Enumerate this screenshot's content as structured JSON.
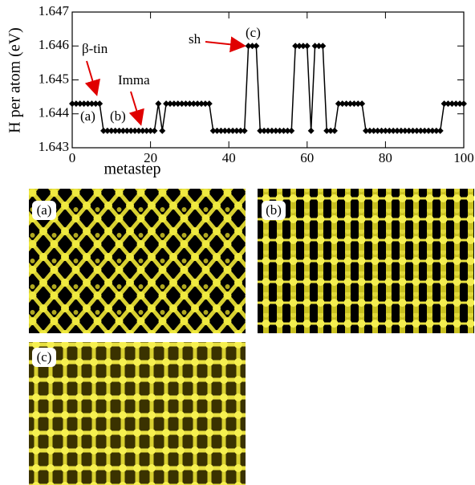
{
  "chart_data": {
    "type": "line",
    "xlabel": "metastep",
    "ylabel": "H per atom (eV)",
    "x": [
      0,
      1,
      2,
      3,
      4,
      5,
      6,
      7,
      8,
      9,
      10,
      11,
      12,
      13,
      14,
      15,
      16,
      17,
      18,
      19,
      20,
      21,
      22,
      23,
      24,
      25,
      26,
      27,
      28,
      29,
      30,
      31,
      32,
      33,
      34,
      35,
      36,
      37,
      38,
      39,
      40,
      41,
      42,
      43,
      44,
      45,
      46,
      47,
      48,
      49,
      50,
      51,
      52,
      53,
      54,
      55,
      56,
      57,
      58,
      59,
      60,
      61,
      62,
      63,
      64,
      65,
      66,
      67,
      68,
      69,
      70,
      71,
      72,
      73,
      74,
      75,
      76,
      77,
      78,
      79,
      80,
      81,
      82,
      83,
      84,
      85,
      86,
      87,
      88,
      89,
      90,
      91,
      92,
      93,
      94,
      95,
      96,
      97,
      98,
      99,
      100
    ],
    "values": [
      1.6443,
      1.6443,
      1.6443,
      1.6443,
      1.6443,
      1.6443,
      1.6443,
      1.6443,
      1.6435,
      1.6435,
      1.6435,
      1.6435,
      1.6435,
      1.6435,
      1.6435,
      1.6435,
      1.6435,
      1.6435,
      1.6435,
      1.6435,
      1.6435,
      1.6435,
      1.6443,
      1.6435,
      1.6443,
      1.6443,
      1.6443,
      1.6443,
      1.6443,
      1.6443,
      1.6443,
      1.6443,
      1.6443,
      1.6443,
      1.6443,
      1.6443,
      1.6435,
      1.6435,
      1.6435,
      1.6435,
      1.6435,
      1.6435,
      1.6435,
      1.6435,
      1.6435,
      1.646,
      1.646,
      1.646,
      1.6435,
      1.6435,
      1.6435,
      1.6435,
      1.6435,
      1.6435,
      1.6435,
      1.6435,
      1.6435,
      1.646,
      1.646,
      1.646,
      1.646,
      1.6435,
      1.646,
      1.646,
      1.646,
      1.6435,
      1.6435,
      1.6435,
      1.6443,
      1.6443,
      1.6443,
      1.6443,
      1.6443,
      1.6443,
      1.6443,
      1.6435,
      1.6435,
      1.6435,
      1.6435,
      1.6435,
      1.6435,
      1.6435,
      1.6435,
      1.6435,
      1.6435,
      1.6435,
      1.6435,
      1.6435,
      1.6435,
      1.6435,
      1.6435,
      1.6435,
      1.6435,
      1.6435,
      1.6435,
      1.6443,
      1.6443,
      1.6443,
      1.6443,
      1.6443,
      1.6443
    ],
    "color": "#000000",
    "xlim": [
      0,
      100
    ],
    "xticks": [
      0,
      20,
      40,
      60,
      80,
      100
    ],
    "ylim": [
      1.643,
      1.647
    ],
    "yticks": [
      1.643,
      1.644,
      1.645,
      1.646,
      1.647
    ],
    "annotations": [
      "β-tin",
      "Imma",
      "sh",
      "(a)",
      "(b)",
      "(c)"
    ]
  },
  "panels": [
    "(a)",
    "(b)",
    "(c)"
  ]
}
